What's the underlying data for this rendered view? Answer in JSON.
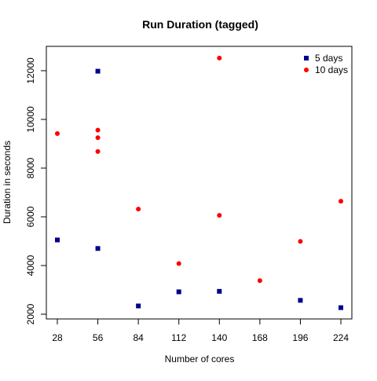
{
  "chart_data": {
    "type": "scatter",
    "title": "Run Duration (tagged)",
    "xlabel": "Number of cores",
    "ylabel": "Duration in seconds",
    "xlim": [
      28,
      224
    ],
    "ylim": [
      2000,
      12500
    ],
    "x_ticks": [
      28,
      56,
      84,
      112,
      140,
      168,
      196,
      224
    ],
    "y_ticks": [
      2000,
      4000,
      6000,
      8000,
      10000,
      12000
    ],
    "grid": false,
    "legend_position": "top-right",
    "series": [
      {
        "name": "5 days",
        "marker": "square",
        "color": "#00008b",
        "points": [
          {
            "x": 28,
            "y": 5050
          },
          {
            "x": 56,
            "y": 11980
          },
          {
            "x": 56,
            "y": 4700
          },
          {
            "x": 84,
            "y": 2340
          },
          {
            "x": 112,
            "y": 2920
          },
          {
            "x": 140,
            "y": 2940
          },
          {
            "x": 196,
            "y": 2570
          },
          {
            "x": 224,
            "y": 2270
          }
        ]
      },
      {
        "name": "10 days",
        "marker": "circle",
        "color": "#ff0000",
        "points": [
          {
            "x": 28,
            "y": 9420
          },
          {
            "x": 56,
            "y": 9560
          },
          {
            "x": 56,
            "y": 9250
          },
          {
            "x": 56,
            "y": 8680
          },
          {
            "x": 84,
            "y": 6320
          },
          {
            "x": 112,
            "y": 4080
          },
          {
            "x": 140,
            "y": 12520
          },
          {
            "x": 140,
            "y": 6060
          },
          {
            "x": 168,
            "y": 3380
          },
          {
            "x": 196,
            "y": 4990
          },
          {
            "x": 224,
            "y": 6640
          }
        ]
      }
    ]
  }
}
